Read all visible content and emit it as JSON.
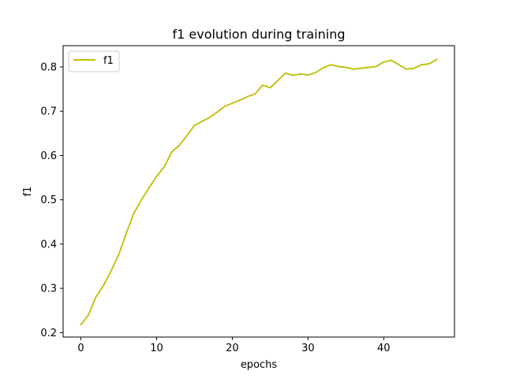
{
  "chart_data": {
    "type": "line",
    "title": "f1 evolution during training",
    "xlabel": "epochs",
    "ylabel": "f1",
    "xlim": [
      -2.35,
      49.35
    ],
    "ylim": [
      0.19,
      0.848
    ],
    "xticks": [
      0,
      10,
      20,
      30,
      40
    ],
    "yticks": [
      0.2,
      0.3,
      0.4,
      0.5,
      0.6,
      0.7,
      0.8
    ],
    "grid": false,
    "legend_position": "top-left",
    "series": [
      {
        "name": "f1",
        "color": "#bfbf00",
        "x": [
          0,
          1,
          2,
          3,
          4,
          5,
          6,
          7,
          8,
          9,
          10,
          11,
          12,
          13,
          14,
          15,
          16,
          17,
          18,
          19,
          20,
          21,
          22,
          23,
          24,
          25,
          26,
          27,
          28,
          29,
          30,
          31,
          32,
          33,
          34,
          35,
          36,
          37,
          38,
          39,
          40,
          41,
          42,
          43,
          44,
          45,
          46,
          47
        ],
        "values": [
          0.218,
          0.24,
          0.281,
          0.307,
          0.34,
          0.376,
          0.425,
          0.47,
          0.5,
          0.527,
          0.553,
          0.574,
          0.608,
          0.623,
          0.645,
          0.668,
          0.677,
          0.686,
          0.698,
          0.711,
          0.718,
          0.725,
          0.733,
          0.739,
          0.759,
          0.753,
          0.769,
          0.786,
          0.781,
          0.784,
          0.782,
          0.787,
          0.798,
          0.805,
          0.801,
          0.799,
          0.795,
          0.797,
          0.799,
          0.801,
          0.811,
          0.815,
          0.805,
          0.795,
          0.797,
          0.805,
          0.807,
          0.817
        ]
      }
    ]
  }
}
